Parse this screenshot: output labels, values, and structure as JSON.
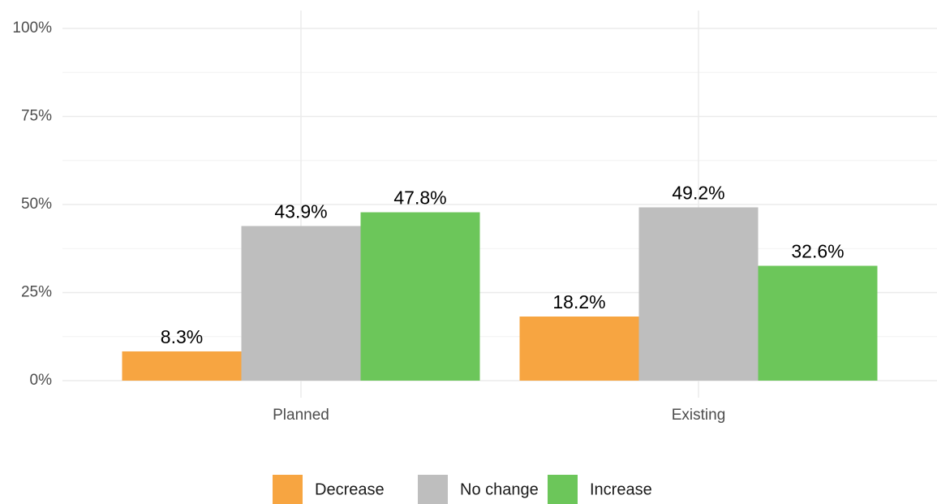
{
  "chart_data": {
    "type": "grouped_bar",
    "categories": [
      "Planned",
      "Existing"
    ],
    "series": [
      {
        "name": "Decrease",
        "color": "#F7A541",
        "values": [
          8.3,
          18.2
        ],
        "value_labels": [
          "8.3%",
          "18.2%"
        ]
      },
      {
        "name": "No change",
        "color": "#BEBEBE",
        "values": [
          43.9,
          49.2
        ],
        "value_labels": [
          "43.9%",
          "49.2%"
        ]
      },
      {
        "name": "Increase",
        "color": "#6CC65A",
        "values": [
          47.8,
          32.6
        ],
        "value_labels": [
          "47.8%",
          "32.6%"
        ]
      }
    ],
    "ylim": [
      0,
      100
    ],
    "yticks": [
      {
        "value": 0,
        "label": "0%"
      },
      {
        "value": 25,
        "label": "25%"
      },
      {
        "value": 50,
        "label": "50%"
      },
      {
        "value": 75,
        "label": "75%"
      },
      {
        "value": 100,
        "label": "100%"
      }
    ],
    "minor_yticks": [
      12.5,
      37.5,
      62.5,
      87.5
    ],
    "grid": true,
    "legend": "bottom"
  }
}
